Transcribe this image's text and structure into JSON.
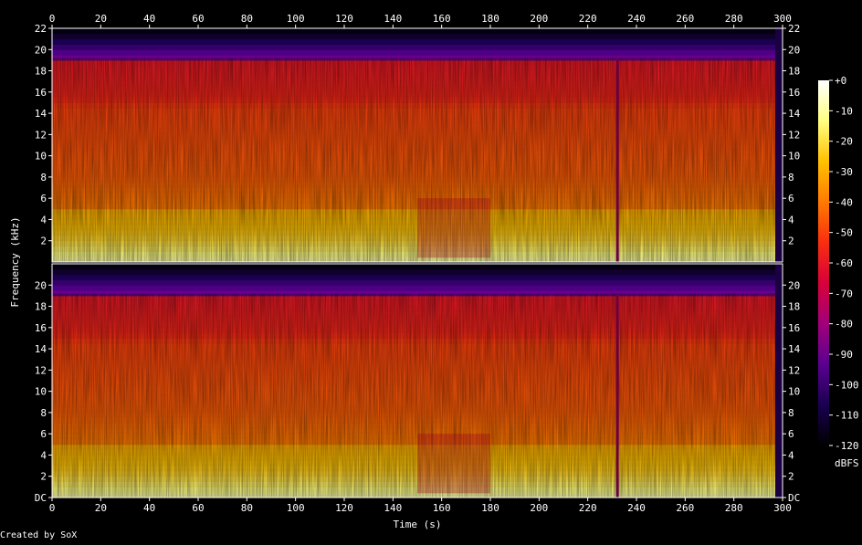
{
  "chart_data": {
    "type": "heatmap",
    "chart_kind": "spectrogram",
    "xlabel": "Time (s)",
    "ylabel": "Frequency (kHz)",
    "xlim": [
      0,
      300
    ],
    "ylim_khz": [
      0,
      22
    ],
    "x_ticks": [
      "0",
      "20",
      "40",
      "60",
      "80",
      "100",
      "120",
      "140",
      "160",
      "180",
      "200",
      "220",
      "240",
      "260",
      "280",
      "300"
    ],
    "y_ticks_channel_top": [
      "2",
      "4",
      "6",
      "8",
      "10",
      "12",
      "14",
      "16",
      "18",
      "20",
      "22"
    ],
    "y_ticks_channel_bottom": [
      "DC",
      "2",
      "4",
      "6",
      "8",
      "10",
      "12",
      "14",
      "16",
      "18",
      "20"
    ],
    "channels": 2,
    "colorbar": {
      "label": "dBFS",
      "range_db": [
        -120,
        0
      ],
      "ticks": [
        "+0",
        "-10",
        "-20",
        "-30",
        "-40",
        "-50",
        "-60",
        "-70",
        "-80",
        "-90",
        "-100",
        "-110",
        "-120"
      ],
      "colors": [
        "#000000",
        "#1a0050",
        "#5a0090",
        "#a0007a",
        "#d8003a",
        "#f82e10",
        "#ff7a00",
        "#ffc000",
        "#ffff80",
        "#ffffff"
      ]
    },
    "frequency_profile_db": [
      {
        "khz": 0.0,
        "db": -8
      },
      {
        "khz": 1.0,
        "db": -15
      },
      {
        "khz": 2.5,
        "db": -24
      },
      {
        "khz": 4.8,
        "db": -30
      },
      {
        "khz": 5.2,
        "db": -40
      },
      {
        "khz": 8.0,
        "db": -45
      },
      {
        "khz": 14.5,
        "db": -50
      },
      {
        "khz": 15.5,
        "db": -56
      },
      {
        "khz": 18.9,
        "db": -60
      },
      {
        "khz": 19.2,
        "db": -90
      },
      {
        "khz": 22.0,
        "db": -120
      }
    ],
    "events": [
      {
        "type": "quieter_section",
        "start_s": 150,
        "end_s": 180
      },
      {
        "type": "dropout",
        "time_s": 232
      },
      {
        "type": "silence_after",
        "time_s": 297
      }
    ]
  },
  "footer": {
    "credit": "Created by SoX"
  }
}
